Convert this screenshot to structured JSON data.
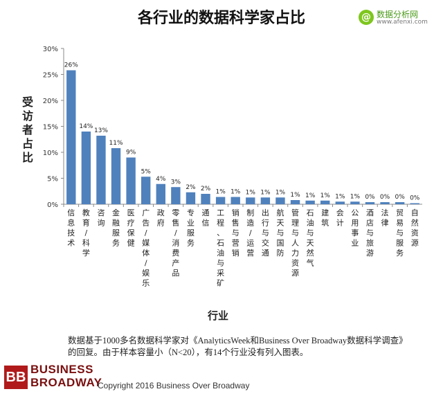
{
  "title": "各行业的数据科学家占比",
  "watermark": {
    "symbol": "@",
    "name": "数据分析网",
    "url": "www.afenxi.com"
  },
  "note": "数据基于1000多名数据科学家对《AnalyticsWeek和Business Over Broadway数据科学调查》的回复。由于样本容量小（N<20），有14个行业没有列入图表。",
  "logo": {
    "mark": "BB",
    "line1": "BUSINESS",
    "line2": "BROADWAY"
  },
  "copyright": "Copyright 2016 Business Over Broadway",
  "colors": {
    "bar": "#4f81bd",
    "logo": "#b01a1a"
  },
  "chart_data": {
    "type": "bar",
    "title": "各行业的数据科学家占比",
    "xlabel": "行业",
    "ylabel": "受访者占比",
    "ylim": [
      0,
      30
    ],
    "yticks": [
      "0%",
      "5%",
      "10%",
      "15%",
      "20%",
      "25%",
      "30%"
    ],
    "grid": false,
    "categories": [
      "信息技术",
      "教育/科学",
      "咨询",
      "金融服务",
      "医疗保健",
      "广告/媒体/娱乐",
      "政府",
      "零售/消费产品",
      "专业服务",
      "通信",
      "工程、石油与采矿",
      "销售与营销",
      "制造/运营",
      "出行与交通",
      "航天与国防",
      "管理与人力资源",
      "石油与天然气",
      "建筑",
      "会计",
      "公用事业",
      "酒店与旅游",
      "法律",
      "贸易与服务",
      "自然资源"
    ],
    "values": [
      25.8,
      14.0,
      13.2,
      10.8,
      9.0,
      5.3,
      3.9,
      3.3,
      2.3,
      2.0,
      1.4,
      1.4,
      1.3,
      1.3,
      1.3,
      0.8,
      0.7,
      0.7,
      0.5,
      0.5,
      0.4,
      0.4,
      0.4,
      0.2
    ],
    "data_labels": [
      "26%",
      "14%",
      "13%",
      "11%",
      "9%",
      "5%",
      "4%",
      "3%",
      "2%",
      "2%",
      "1%",
      "1%",
      "1%",
      "1%",
      "1%",
      "1%",
      "1%",
      "1%",
      "1%",
      "1%",
      "0%",
      "0%",
      "0%",
      "0%"
    ]
  }
}
